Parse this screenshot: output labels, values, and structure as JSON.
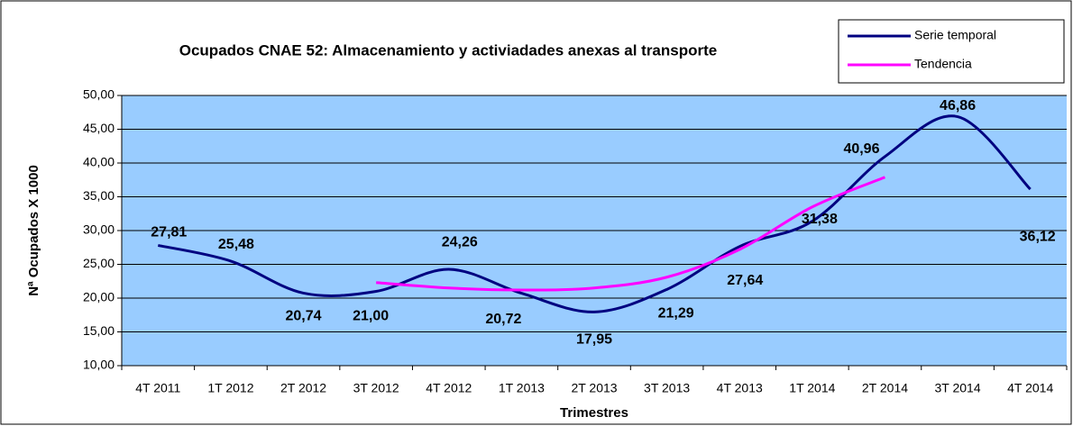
{
  "chart_data": {
    "type": "line",
    "title": "Ocupados CNAE 52: Almacenamiento y activiadades anexas al transporte",
    "x_label": "Trimestres",
    "y_label": "Nª Ocupados X 1000",
    "categories": [
      "4T 2011",
      "1T 2012",
      "2T 2012",
      "3T 2012",
      "4T 2012",
      "1T 2013",
      "2T 2013",
      "3T 2013",
      "4T 2013",
      "1T 2014",
      "2T 2014",
      "3T 2014",
      "4T 2014"
    ],
    "series": [
      {
        "name": "Serie temporal",
        "color": "#000080",
        "values": [
          27.81,
          25.48,
          20.74,
          21.0,
          24.26,
          20.72,
          17.95,
          21.29,
          27.64,
          31.38,
          40.96,
          46.86,
          36.12
        ],
        "value_labels": [
          "27,81",
          "25,48",
          "20,74",
          "21,00",
          "24,26",
          "20,72",
          "17,95",
          "21,29",
          "27,64",
          "31,38",
          "40,96",
          "46,86",
          "36,12"
        ]
      },
      {
        "name": "Tendencia",
        "color": "#ff00ff",
        "values": [
          null,
          null,
          null,
          22.3,
          21.5,
          21.2,
          21.5,
          23.1,
          27.2,
          33.5,
          37.9,
          null,
          null
        ]
      }
    ],
    "ylim": [
      10,
      50
    ],
    "yticks": [
      {
        "value": 10,
        "label": "10,00"
      },
      {
        "value": 15,
        "label": "15,00"
      },
      {
        "value": 20,
        "label": "20,00"
      },
      {
        "value": 25,
        "label": "25,00"
      },
      {
        "value": 30,
        "label": "30,00"
      },
      {
        "value": 35,
        "label": "35,00"
      },
      {
        "value": 40,
        "label": "40,00"
      },
      {
        "value": 45,
        "label": "45,00"
      },
      {
        "value": 50,
        "label": "50,00"
      }
    ],
    "grid": true,
    "plot_background": "#99ccff",
    "legend": "upper right"
  }
}
